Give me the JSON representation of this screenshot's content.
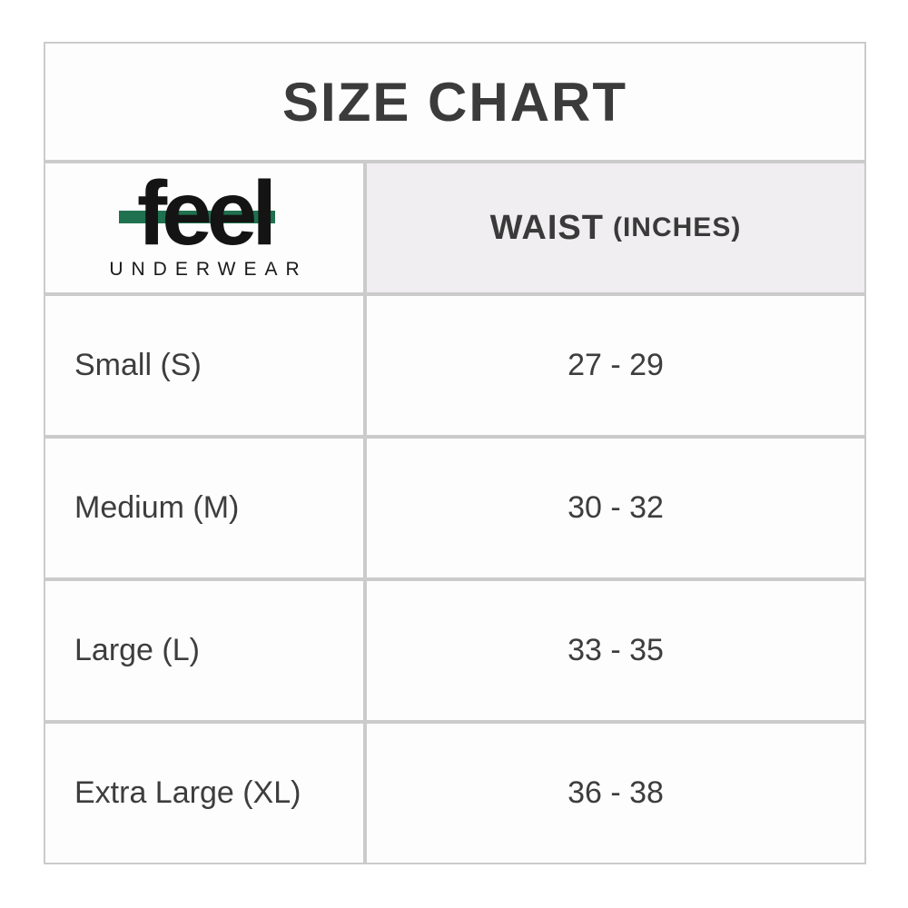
{
  "title": "SIZE CHART",
  "brand": {
    "logo_text": "feel",
    "logo_subtext": "UNDERWEAR",
    "logo_bar_color": "#1f7150"
  },
  "table": {
    "column_header": {
      "main": "WAIST",
      "unit": "(INCHES)"
    },
    "rows": [
      {
        "size": "Small (S)",
        "waist": "27 - 29"
      },
      {
        "size": "Medium (M)",
        "waist": "30 - 32"
      },
      {
        "size": "Large (L)",
        "waist": "33 - 35"
      },
      {
        "size": "Extra Large (XL)",
        "waist": "36 - 38"
      }
    ]
  },
  "colors": {
    "border": "#cbcbcb",
    "header_cell_bg": "#f0eef0",
    "cell_bg": "#fefdfd",
    "text": "#3d3d3d",
    "logo_text": "#141414",
    "logo_bar": "#1f7150"
  }
}
